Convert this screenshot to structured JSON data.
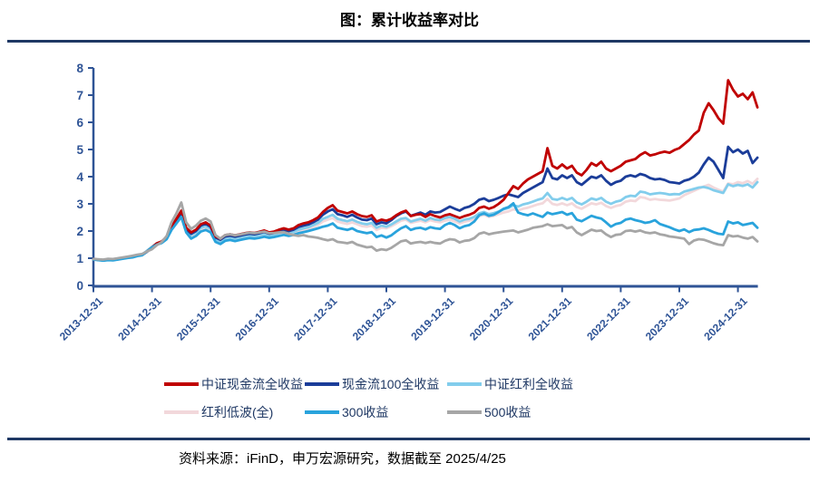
{
  "header": {
    "title": "图：累计收益率对比"
  },
  "footer": {
    "source": "资料来源：iFinD，申万宏源研究，数据截至 2025/4/25"
  },
  "chart_data": {
    "type": "line",
    "title": "图：累计收益率对比",
    "xlabel": "",
    "ylabel": "",
    "ylim": [
      0,
      8
    ],
    "y_ticks": [
      0,
      1,
      2,
      3,
      4,
      5,
      6,
      7,
      8
    ],
    "grid": false,
    "legend_position": "bottom",
    "axis_color": "#2F5496",
    "x_tick_labels": [
      "2013-12-31",
      "2014-12-31",
      "2015-12-31",
      "2016-12-31",
      "2017-12-31",
      "2018-12-31",
      "2019-12-31",
      "2020-12-31",
      "2021-12-31",
      "2022-12-31",
      "2023-12-31",
      "2024-12-31"
    ],
    "x_unit": "monthly points from 2013-12 to 2025-04",
    "months_per_tick": 12,
    "draw_order": [
      3,
      2,
      1,
      0,
      4,
      5
    ],
    "series": [
      {
        "name": "中证现金流全收益",
        "color": "#C00000",
        "values": [
          0.97,
          0.95,
          0.93,
          0.95,
          0.94,
          0.97,
          1.0,
          1.03,
          1.05,
          1.1,
          1.13,
          1.25,
          1.4,
          1.55,
          1.62,
          1.78,
          2.18,
          2.45,
          2.75,
          2.12,
          1.95,
          2.05,
          2.25,
          2.32,
          2.2,
          1.8,
          1.72,
          1.85,
          1.88,
          1.84,
          1.88,
          1.92,
          1.95,
          1.93,
          1.97,
          2.02,
          1.95,
          1.98,
          2.05,
          2.1,
          2.05,
          2.1,
          2.22,
          2.28,
          2.32,
          2.4,
          2.5,
          2.7,
          2.85,
          2.95,
          2.75,
          2.7,
          2.65,
          2.72,
          2.62,
          2.55,
          2.52,
          2.58,
          2.35,
          2.42,
          2.38,
          2.45,
          2.58,
          2.68,
          2.75,
          2.55,
          2.6,
          2.62,
          2.52,
          2.62,
          2.55,
          2.5,
          2.58,
          2.62,
          2.55,
          2.48,
          2.55,
          2.6,
          2.68,
          2.85,
          2.9,
          2.82,
          2.88,
          3.0,
          3.15,
          3.4,
          3.65,
          3.55,
          3.75,
          3.9,
          4.0,
          4.1,
          4.2,
          5.05,
          4.4,
          4.3,
          4.45,
          4.3,
          4.4,
          4.15,
          4.05,
          4.25,
          4.5,
          4.4,
          4.55,
          4.3,
          4.2,
          4.3,
          4.4,
          4.55,
          4.6,
          4.65,
          4.8,
          4.9,
          4.78,
          4.82,
          4.88,
          4.92,
          4.88,
          4.98,
          5.05,
          5.2,
          5.35,
          5.55,
          5.7,
          6.35,
          6.7,
          6.45,
          6.15,
          5.95,
          7.55,
          7.2,
          6.95,
          7.05,
          6.85,
          7.1,
          6.55
        ]
      },
      {
        "name": "现金流100全收益",
        "color": "#1B3D99",
        "values": [
          0.96,
          0.94,
          0.92,
          0.94,
          0.93,
          0.96,
          0.99,
          1.02,
          1.04,
          1.09,
          1.12,
          1.24,
          1.38,
          1.52,
          1.58,
          1.74,
          2.12,
          2.4,
          2.68,
          2.08,
          1.9,
          2.0,
          2.2,
          2.27,
          2.15,
          1.76,
          1.68,
          1.8,
          1.83,
          1.79,
          1.83,
          1.87,
          1.9,
          1.88,
          1.92,
          1.97,
          1.9,
          1.93,
          2.0,
          2.04,
          2.0,
          2.05,
          2.15,
          2.2,
          2.24,
          2.32,
          2.42,
          2.6,
          2.72,
          2.8,
          2.62,
          2.58,
          2.52,
          2.6,
          2.5,
          2.42,
          2.4,
          2.46,
          2.25,
          2.32,
          2.28,
          2.4,
          2.55,
          2.65,
          2.72,
          2.56,
          2.62,
          2.68,
          2.6,
          2.72,
          2.68,
          2.7,
          2.8,
          2.9,
          2.82,
          2.75,
          2.85,
          2.9,
          3.0,
          3.15,
          3.2,
          3.1,
          3.15,
          3.22,
          3.3,
          3.35,
          3.3,
          3.25,
          3.4,
          3.5,
          3.6,
          3.7,
          3.8,
          4.3,
          3.95,
          3.9,
          4.05,
          3.95,
          4.05,
          3.8,
          3.7,
          3.85,
          4.0,
          3.95,
          4.05,
          3.85,
          3.7,
          3.8,
          3.85,
          4.0,
          4.05,
          4.0,
          4.1,
          4.05,
          3.95,
          3.9,
          3.92,
          3.88,
          3.8,
          3.78,
          3.75,
          3.85,
          3.9,
          4.0,
          4.15,
          4.45,
          4.7,
          4.55,
          4.25,
          3.95,
          5.1,
          4.9,
          5.0,
          4.85,
          4.95,
          4.5,
          4.7
        ]
      },
      {
        "name": "中证红利全收益",
        "color": "#82CDEC",
        "values": [
          0.96,
          0.94,
          0.92,
          0.94,
          0.93,
          0.96,
          0.99,
          1.02,
          1.05,
          1.1,
          1.14,
          1.28,
          1.42,
          1.55,
          1.6,
          1.75,
          2.1,
          2.35,
          2.62,
          2.05,
          1.86,
          1.95,
          2.12,
          2.18,
          2.08,
          1.7,
          1.62,
          1.74,
          1.77,
          1.73,
          1.77,
          1.81,
          1.84,
          1.82,
          1.86,
          1.9,
          1.84,
          1.87,
          1.93,
          1.97,
          1.93,
          1.97,
          2.05,
          2.1,
          2.14,
          2.22,
          2.3,
          2.45,
          2.52,
          2.6,
          2.45,
          2.4,
          2.36,
          2.42,
          2.34,
          2.28,
          2.25,
          2.3,
          2.12,
          2.2,
          2.16,
          2.24,
          2.35,
          2.45,
          2.48,
          2.35,
          2.4,
          2.45,
          2.38,
          2.48,
          2.42,
          2.4,
          2.48,
          2.52,
          2.45,
          2.35,
          2.42,
          2.45,
          2.52,
          2.65,
          2.7,
          2.62,
          2.66,
          2.72,
          2.8,
          2.85,
          2.95,
          2.9,
          2.98,
          3.02,
          3.08,
          3.15,
          3.2,
          3.4,
          3.18,
          3.15,
          3.22,
          3.15,
          3.22,
          3.05,
          2.98,
          3.08,
          3.2,
          3.15,
          3.22,
          3.08,
          3.0,
          3.08,
          3.12,
          3.25,
          3.3,
          3.28,
          3.45,
          3.42,
          3.35,
          3.38,
          3.4,
          3.38,
          3.34,
          3.36,
          3.35,
          3.45,
          3.5,
          3.55,
          3.6,
          3.62,
          3.58,
          3.5,
          3.45,
          3.4,
          3.72,
          3.65,
          3.7,
          3.66,
          3.72,
          3.6,
          3.8
        ]
      },
      {
        "name": "红利低波(全)",
        "color": "#F2D8DB",
        "values": [
          0.97,
          0.95,
          0.93,
          0.95,
          0.94,
          0.97,
          1.0,
          1.03,
          1.06,
          1.11,
          1.15,
          1.27,
          1.4,
          1.53,
          1.58,
          1.72,
          2.06,
          2.32,
          2.58,
          2.02,
          1.84,
          1.92,
          2.08,
          2.14,
          2.05,
          1.68,
          1.6,
          1.72,
          1.75,
          1.71,
          1.75,
          1.79,
          1.82,
          1.8,
          1.84,
          1.88,
          1.82,
          1.85,
          1.9,
          1.94,
          1.9,
          1.94,
          2.0,
          2.05,
          2.08,
          2.15,
          2.22,
          2.35,
          2.42,
          2.48,
          2.35,
          2.3,
          2.26,
          2.32,
          2.25,
          2.18,
          2.16,
          2.2,
          2.04,
          2.12,
          2.1,
          2.18,
          2.28,
          2.38,
          2.42,
          2.3,
          2.34,
          2.38,
          2.32,
          2.4,
          2.35,
          2.32,
          2.38,
          2.42,
          2.35,
          2.28,
          2.34,
          2.38,
          2.44,
          2.55,
          2.6,
          2.52,
          2.56,
          2.62,
          2.68,
          2.72,
          2.8,
          2.76,
          2.82,
          2.86,
          2.92,
          2.98,
          3.02,
          3.18,
          3.0,
          2.96,
          3.02,
          2.95,
          3.02,
          2.88,
          2.82,
          2.92,
          3.02,
          2.98,
          3.04,
          2.92,
          2.85,
          2.92,
          2.96,
          3.08,
          3.12,
          3.1,
          3.25,
          3.22,
          3.15,
          3.18,
          3.15,
          3.14,
          3.12,
          3.16,
          3.2,
          3.32,
          3.4,
          3.48,
          3.56,
          3.64,
          3.7,
          3.6,
          3.52,
          3.45,
          3.75,
          3.72,
          3.8,
          3.76,
          3.84,
          3.74,
          3.92
        ]
      },
      {
        "name": "300收益",
        "color": "#29A3DC",
        "values": [
          0.95,
          0.93,
          0.91,
          0.93,
          0.92,
          0.95,
          0.98,
          1.01,
          1.03,
          1.08,
          1.11,
          1.25,
          1.4,
          1.5,
          1.56,
          1.7,
          2.04,
          2.28,
          2.52,
          1.95,
          1.72,
          1.82,
          1.98,
          2.04,
          1.95,
          1.6,
          1.52,
          1.64,
          1.67,
          1.63,
          1.67,
          1.71,
          1.74,
          1.72,
          1.75,
          1.79,
          1.75,
          1.78,
          1.82,
          1.86,
          1.82,
          1.86,
          1.92,
          1.96,
          2.0,
          2.05,
          2.1,
          2.16,
          2.2,
          2.28,
          2.12,
          2.08,
          2.04,
          2.1,
          2.0,
          1.96,
          1.92,
          1.96,
          1.78,
          1.84,
          1.76,
          1.84,
          1.98,
          2.1,
          2.18,
          2.04,
          2.1,
          2.12,
          2.06,
          2.14,
          2.1,
          2.08,
          2.22,
          2.3,
          2.22,
          2.1,
          2.18,
          2.22,
          2.35,
          2.58,
          2.65,
          2.56,
          2.6,
          2.7,
          2.82,
          2.88,
          3.02,
          2.68,
          2.62,
          2.58,
          2.65,
          2.58,
          2.52,
          2.68,
          2.62,
          2.66,
          2.7,
          2.6,
          2.66,
          2.42,
          2.36,
          2.46,
          2.56,
          2.5,
          2.46,
          2.32,
          2.16,
          2.26,
          2.3,
          2.42,
          2.46,
          2.4,
          2.36,
          2.3,
          2.33,
          2.4,
          2.26,
          2.2,
          2.14,
          2.06,
          2.0,
          2.06,
          1.96,
          2.04,
          2.06,
          2.1,
          2.04,
          1.96,
          1.9,
          1.88,
          2.35,
          2.28,
          2.32,
          2.22,
          2.26,
          2.3,
          2.12
        ]
      },
      {
        "name": "500收益",
        "color": "#A6A6A6",
        "values": [
          0.97,
          0.96,
          0.95,
          0.98,
          0.97,
          1.0,
          1.03,
          1.06,
          1.09,
          1.13,
          1.16,
          1.25,
          1.33,
          1.48,
          1.6,
          1.82,
          2.32,
          2.65,
          3.05,
          2.32,
          2.08,
          2.2,
          2.38,
          2.46,
          2.35,
          1.85,
          1.72,
          1.85,
          1.88,
          1.84,
          1.87,
          1.91,
          1.94,
          1.92,
          1.95,
          1.98,
          1.92,
          1.93,
          1.95,
          1.96,
          1.9,
          1.85,
          1.82,
          1.85,
          1.8,
          1.78,
          1.75,
          1.7,
          1.66,
          1.7,
          1.6,
          1.58,
          1.55,
          1.6,
          1.5,
          1.45,
          1.4,
          1.42,
          1.28,
          1.33,
          1.3,
          1.38,
          1.5,
          1.62,
          1.66,
          1.54,
          1.58,
          1.6,
          1.56,
          1.6,
          1.56,
          1.54,
          1.64,
          1.7,
          1.68,
          1.58,
          1.64,
          1.66,
          1.74,
          1.9,
          1.95,
          1.88,
          1.92,
          1.95,
          1.98,
          2.0,
          2.02,
          1.95,
          2.0,
          2.05,
          2.12,
          2.15,
          2.18,
          2.25,
          2.18,
          2.2,
          2.22,
          2.1,
          2.15,
          1.95,
          1.85,
          1.95,
          2.05,
          2.0,
          2.02,
          1.88,
          1.78,
          1.86,
          1.88,
          2.0,
          2.02,
          1.98,
          2.02,
          1.95,
          1.92,
          1.95,
          1.88,
          1.85,
          1.8,
          1.78,
          1.75,
          1.72,
          1.52,
          1.65,
          1.7,
          1.68,
          1.62,
          1.55,
          1.5,
          1.48,
          1.85,
          1.8,
          1.82,
          1.76,
          1.72,
          1.78,
          1.62
        ]
      }
    ]
  }
}
